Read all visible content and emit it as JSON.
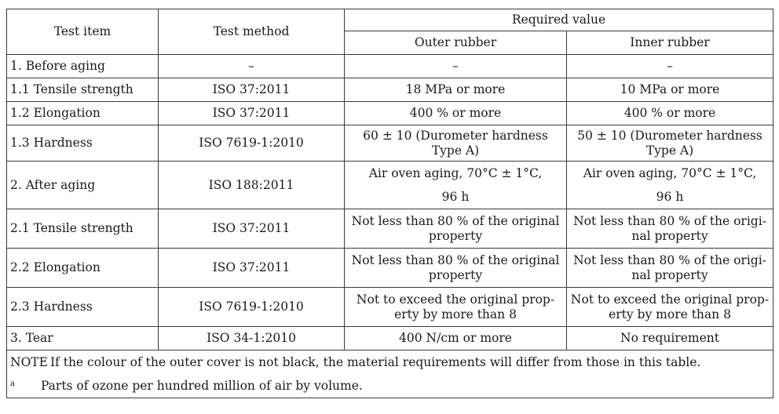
{
  "headers": {
    "test_item": "Test item",
    "test_method": "Test method",
    "required_value": "Required value",
    "outer_rubber": "Outer rubber",
    "inner_rubber": "Inner rubber"
  },
  "rows": [
    {
      "item": "1. Before aging",
      "method": "–",
      "outer": [
        "–"
      ],
      "inner": [
        "–"
      ]
    },
    {
      "item": "1.1 Tensile strength",
      "method": "ISO 37:2011",
      "outer": [
        "18 MPa or more"
      ],
      "inner": [
        "10 MPa or more"
      ]
    },
    {
      "item": "1.2 Elongation",
      "method": "ISO 37:2011",
      "outer": [
        "400 % or more"
      ],
      "inner": [
        "400 % or more"
      ]
    },
    {
      "item": "1.3 Hardness",
      "method": "ISO 7619-1:2010",
      "outer": [
        "60 ± 10 (Durometer hardness",
        "Type A)"
      ],
      "inner": [
        "50 ± 10 (Durometer hardness",
        "Type A)"
      ]
    },
    {
      "item": "2. After aging",
      "method": "ISO 188:2011",
      "outer": [
        "Air oven aging, 70°C ± 1°C,",
        "96 h"
      ],
      "inner": [
        "Air oven aging, 70°C ± 1°C,",
        "96 h"
      ]
    },
    {
      "item": "2.1 Tensile strength",
      "method": "ISO 37:2011",
      "outer": [
        "Not less than 80 % of the original",
        "property"
      ],
      "inner": [
        "Not less than 80 % of the origi-",
        "nal property"
      ]
    },
    {
      "item": "2.2 Elongation",
      "method": "ISO 37:2011",
      "outer": [
        "Not less than 80 % of the original",
        "property"
      ],
      "inner": [
        "Not less than 80 % of the origi-",
        "nal property"
      ]
    },
    {
      "item": "2.3 Hardness",
      "method": "ISO 7619-1:2010",
      "outer": [
        "Not to exceed the original prop-",
        "erty by more than 8"
      ],
      "inner": [
        "Not to exceed the original prop-",
        "erty by more than 8"
      ]
    },
    {
      "item": "3. Tear",
      "method": "ISO 34-1:2010",
      "outer": [
        "400 N/cm or more"
      ],
      "inner": [
        "No requirement"
      ]
    }
  ],
  "note": {
    "label": "NOTE",
    "text": "If the colour of the outer cover is not black, the material requirements will differ from those in this table."
  },
  "footnote": {
    "mark": "a",
    "text": "Parts of ozone per hundred million of air by volume."
  }
}
